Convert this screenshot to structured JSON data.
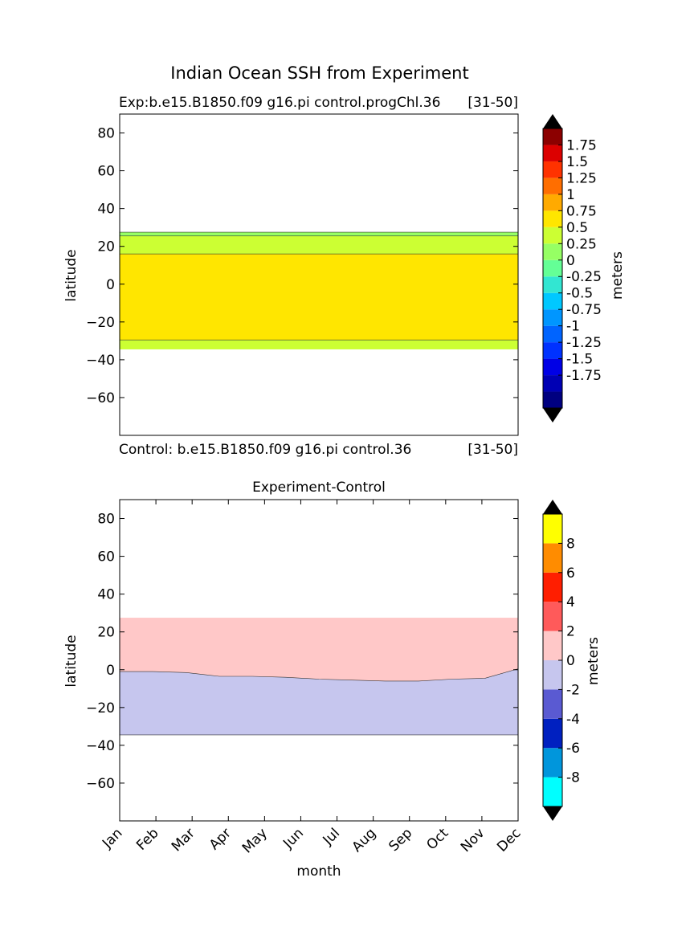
{
  "figure": {
    "suptitle": "Indian Ocean SSH from Experiment"
  },
  "chart_data": [
    {
      "type": "contourf",
      "title": "",
      "title_left": "Exp:b.e15.B1850.f09 g16.pi control.progChl.36",
      "title_right": "[31-50]",
      "footer_left": "Control: b.e15.B1850.f09 g16.pi control.36",
      "footer_right": "[31-50]",
      "ylabel": "latitude",
      "xlabel": "",
      "ylim": [
        -80,
        90
      ],
      "xlim": [
        1,
        12
      ],
      "yticks": [
        80,
        60,
        40,
        20,
        0,
        -20,
        -40,
        -60
      ],
      "xticklabels": [],
      "colorbar": {
        "label": "meters",
        "levels": [
          -2,
          -1.75,
          -1.5,
          -1.25,
          -1,
          -0.75,
          -0.5,
          -0.25,
          0,
          0.25,
          0.5,
          0.75,
          1,
          1.25,
          1.5,
          1.75,
          2
        ],
        "tick_labels": [
          "1.75",
          "1.5",
          "1.25",
          "1",
          "0.75",
          "0.5",
          "0.25",
          "0",
          "-0.25",
          "-0.5",
          "-0.75",
          "-1",
          "-1.25",
          "-1.5",
          "-1.75"
        ],
        "colors": [
          "#000080",
          "#0000B4",
          "#0000E6",
          "#0032FF",
          "#0064FF",
          "#0096FF",
          "#00C8FF",
          "#32E6D2",
          "#64FF96",
          "#96FF64",
          "#CCFF33",
          "#FFE600",
          "#FFAA00",
          "#FF6E00",
          "#FF3200",
          "#DC0000",
          "#8C0000"
        ],
        "extend_low_color": "#000000",
        "extend_high_color": "#000000"
      },
      "fields": [
        {
          "name": "band 0.25-0.5",
          "color": "#CCFF33",
          "lat_top": 27.5,
          "lat_bottom": -34.5
        },
        {
          "name": "band 0-0.25",
          "color": "#96FF64",
          "lat_top": 27.5,
          "lat_bottom": 25.5
        },
        {
          "name": "band 0.5-0.75",
          "color": "#FFE600",
          "lat_top": 16,
          "lat_bottom": -29.5
        }
      ]
    },
    {
      "type": "contourf",
      "title": "Experiment-Control",
      "ylabel": "latitude",
      "xlabel": "month",
      "ylim": [
        -80,
        90
      ],
      "xlim": [
        1,
        12
      ],
      "yticks": [
        80,
        60,
        40,
        20,
        0,
        -20,
        -40,
        -60
      ],
      "xticklabels": [
        "Jan",
        "Feb",
        "Mar",
        "Apr",
        "May",
        "Jun",
        "Jul",
        "Aug",
        "Sep",
        "Oct",
        "Nov",
        "Dec"
      ],
      "colorbar": {
        "label": "meters",
        "levels": [
          -10,
          -8,
          -6,
          -4,
          -2,
          0,
          2,
          4,
          6,
          8,
          10
        ],
        "tick_labels": [
          "8",
          "6",
          "4",
          "2",
          "0",
          "-2",
          "-4",
          "-6",
          "-8"
        ],
        "colors": [
          "#00FFFF",
          "#0096DC",
          "#0020C0",
          "#5A5AD2",
          "#C6C6EE",
          "#FFC8C8",
          "#FF5A5A",
          "#FF1E00",
          "#FF8C00",
          "#FFFF00"
        ],
        "extend_low_color": "#000000",
        "extend_high_color": "#000000"
      },
      "fields": [
        {
          "name": "positive 0-2",
          "color": "#FFC8C8",
          "lat_top": 27.5,
          "lat_bottom": -34.5
        },
        {
          "name": "negative -2-0",
          "color": "#C6C6EE",
          "lat_top": 0,
          "lat_bottom": -34.5,
          "boundary_lat": [
            -1,
            -1,
            -1.5,
            -3.5,
            -3.5,
            -4,
            -5,
            -5.5,
            -6,
            -6,
            -5,
            -4.5,
            0.5
          ]
        }
      ]
    }
  ]
}
